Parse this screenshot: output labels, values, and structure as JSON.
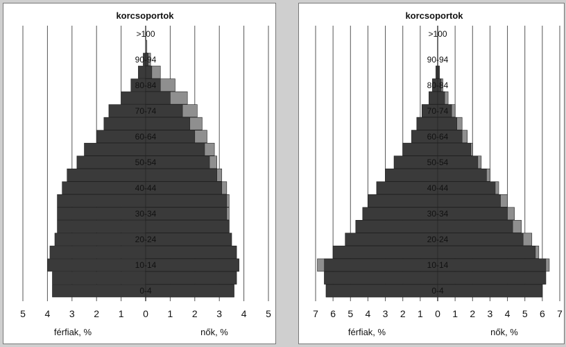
{
  "chart_data": [
    {
      "type": "bar",
      "title": "korcsoportok",
      "categories": [
        "0-4",
        "5-9",
        "10-14",
        "15-19",
        "20-24",
        "25-29",
        "30-34",
        "35-39",
        "40-44",
        "45-49",
        "50-54",
        "55-59",
        "60-64",
        "65-69",
        "70-74",
        "75-79",
        "80-84",
        "85-89",
        "90-94",
        "95-99",
        ">100"
      ],
      "category_tick_labels": [
        "0-4",
        "10-14",
        "20-24",
        "30-34",
        "40-44",
        "50-54",
        "60-64",
        "70-74",
        "80-84",
        "90-94",
        ">100"
      ],
      "xlim": [
        -5,
        5
      ],
      "x_ticks": [
        5,
        4,
        3,
        2,
        1,
        0,
        1,
        2,
        3,
        4,
        5
      ],
      "xlabel_left": "férfiak, %",
      "xlabel_right": "nők, %",
      "series": [
        {
          "side": "male",
          "color": "#3a3a3a",
          "values": [
            3.8,
            3.8,
            4.0,
            3.9,
            3.7,
            3.6,
            3.6,
            3.6,
            3.4,
            3.2,
            2.8,
            2.5,
            2.0,
            1.7,
            1.5,
            1.0,
            0.6,
            0.3,
            0.1,
            0.0,
            0.0
          ]
        },
        {
          "side": "female",
          "color": "#3a3a3a",
          "values": [
            3.6,
            3.7,
            3.8,
            3.7,
            3.5,
            3.4,
            3.3,
            3.3,
            3.1,
            2.9,
            2.6,
            2.4,
            2.0,
            1.8,
            1.5,
            1.0,
            0.6,
            0.25,
            0.1,
            0.0,
            0.0
          ]
        },
        {
          "side": "female-excess",
          "color": "#8f8f8f",
          "values": [
            3.6,
            3.7,
            3.8,
            3.7,
            3.5,
            3.4,
            3.4,
            3.4,
            3.3,
            3.1,
            2.9,
            2.8,
            2.5,
            2.3,
            2.1,
            1.7,
            1.2,
            0.6,
            0.2,
            0.05,
            0.0
          ]
        }
      ]
    },
    {
      "type": "bar",
      "title": "korcsoportok",
      "categories": [
        "0-4",
        "5-9",
        "10-14",
        "15-19",
        "20-24",
        "25-29",
        "30-34",
        "35-39",
        "40-44",
        "45-49",
        "50-54",
        "55-59",
        "60-64",
        "65-69",
        "70-74",
        "75-79",
        "80-84",
        "85-89",
        "90-94",
        "95-99",
        ">100"
      ],
      "category_tick_labels": [
        "0-4",
        "10-14",
        "20-24",
        "30-34",
        "40-44",
        "50-54",
        "60-64",
        "70-74",
        "80-84",
        "90-94",
        ">100"
      ],
      "xlim": [
        -7,
        7
      ],
      "x_ticks": [
        7,
        6,
        5,
        4,
        3,
        2,
        1,
        0,
        1,
        2,
        3,
        4,
        5,
        6,
        7
      ],
      "xlabel_left": "férfiak, %",
      "xlabel_right": "nők, %",
      "series": [
        {
          "side": "male",
          "color": "#3a3a3a",
          "values": [
            6.4,
            6.5,
            6.5,
            6.0,
            5.3,
            4.7,
            4.3,
            4.0,
            3.5,
            3.0,
            2.5,
            2.0,
            1.5,
            1.2,
            0.9,
            0.5,
            0.3,
            0.1,
            0.0,
            0.0,
            0.0
          ]
        },
        {
          "side": "male-excess",
          "color": "#8f8f8f",
          "values": [
            6.4,
            6.5,
            6.9,
            6.0,
            5.3,
            4.7,
            4.3,
            4.0,
            3.5,
            3.0,
            2.5,
            2.0,
            1.5,
            1.2,
            0.9,
            0.5,
            0.3,
            0.1,
            0.0,
            0.0,
            0.0
          ]
        },
        {
          "side": "female",
          "color": "#3a3a3a",
          "values": [
            6.0,
            6.2,
            6.2,
            5.6,
            4.9,
            4.3,
            4.0,
            3.6,
            3.3,
            2.8,
            2.3,
            1.9,
            1.4,
            1.1,
            0.8,
            0.4,
            0.2,
            0.1,
            0.0,
            0.0,
            0.0
          ]
        },
        {
          "side": "female-excess",
          "color": "#8f8f8f",
          "values": [
            6.0,
            6.2,
            6.4,
            5.8,
            5.4,
            4.8,
            4.4,
            4.0,
            3.5,
            3.0,
            2.5,
            2.0,
            1.7,
            1.4,
            1.0,
            0.6,
            0.3,
            0.1,
            0.0,
            0.0,
            0.0
          ]
        }
      ]
    }
  ]
}
